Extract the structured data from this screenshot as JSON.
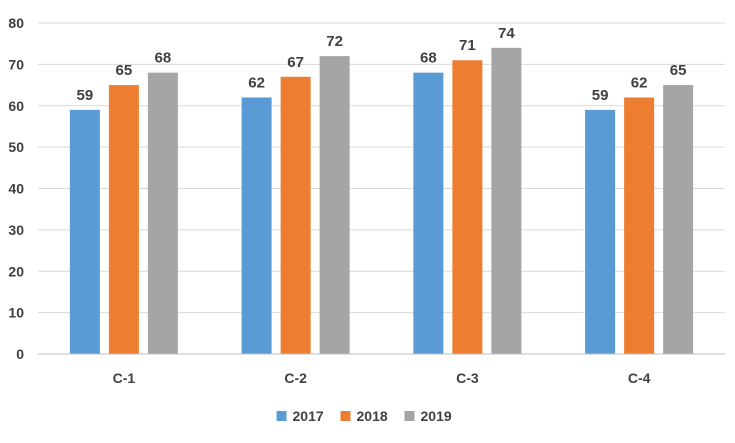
{
  "chart_data": {
    "type": "bar",
    "title": "",
    "xlabel": "",
    "ylabel": "",
    "categories": [
      "C-1",
      "C-2",
      "C-3",
      "C-4"
    ],
    "series": [
      {
        "name": "2017",
        "color": "#5b9bd5",
        "values": [
          59,
          62,
          68,
          59
        ]
      },
      {
        "name": "2018",
        "color": "#ed7d31",
        "values": [
          65,
          67,
          71,
          62
        ]
      },
      {
        "name": "2019",
        "color": "#a5a5a5",
        "values": [
          68,
          72,
          74,
          65
        ]
      }
    ],
    "ylim": [
      0,
      80
    ],
    "yticks": [
      0,
      10,
      20,
      30,
      40,
      50,
      60,
      70,
      80
    ],
    "grid": true,
    "legend_position": "bottom",
    "data_labels": true
  }
}
